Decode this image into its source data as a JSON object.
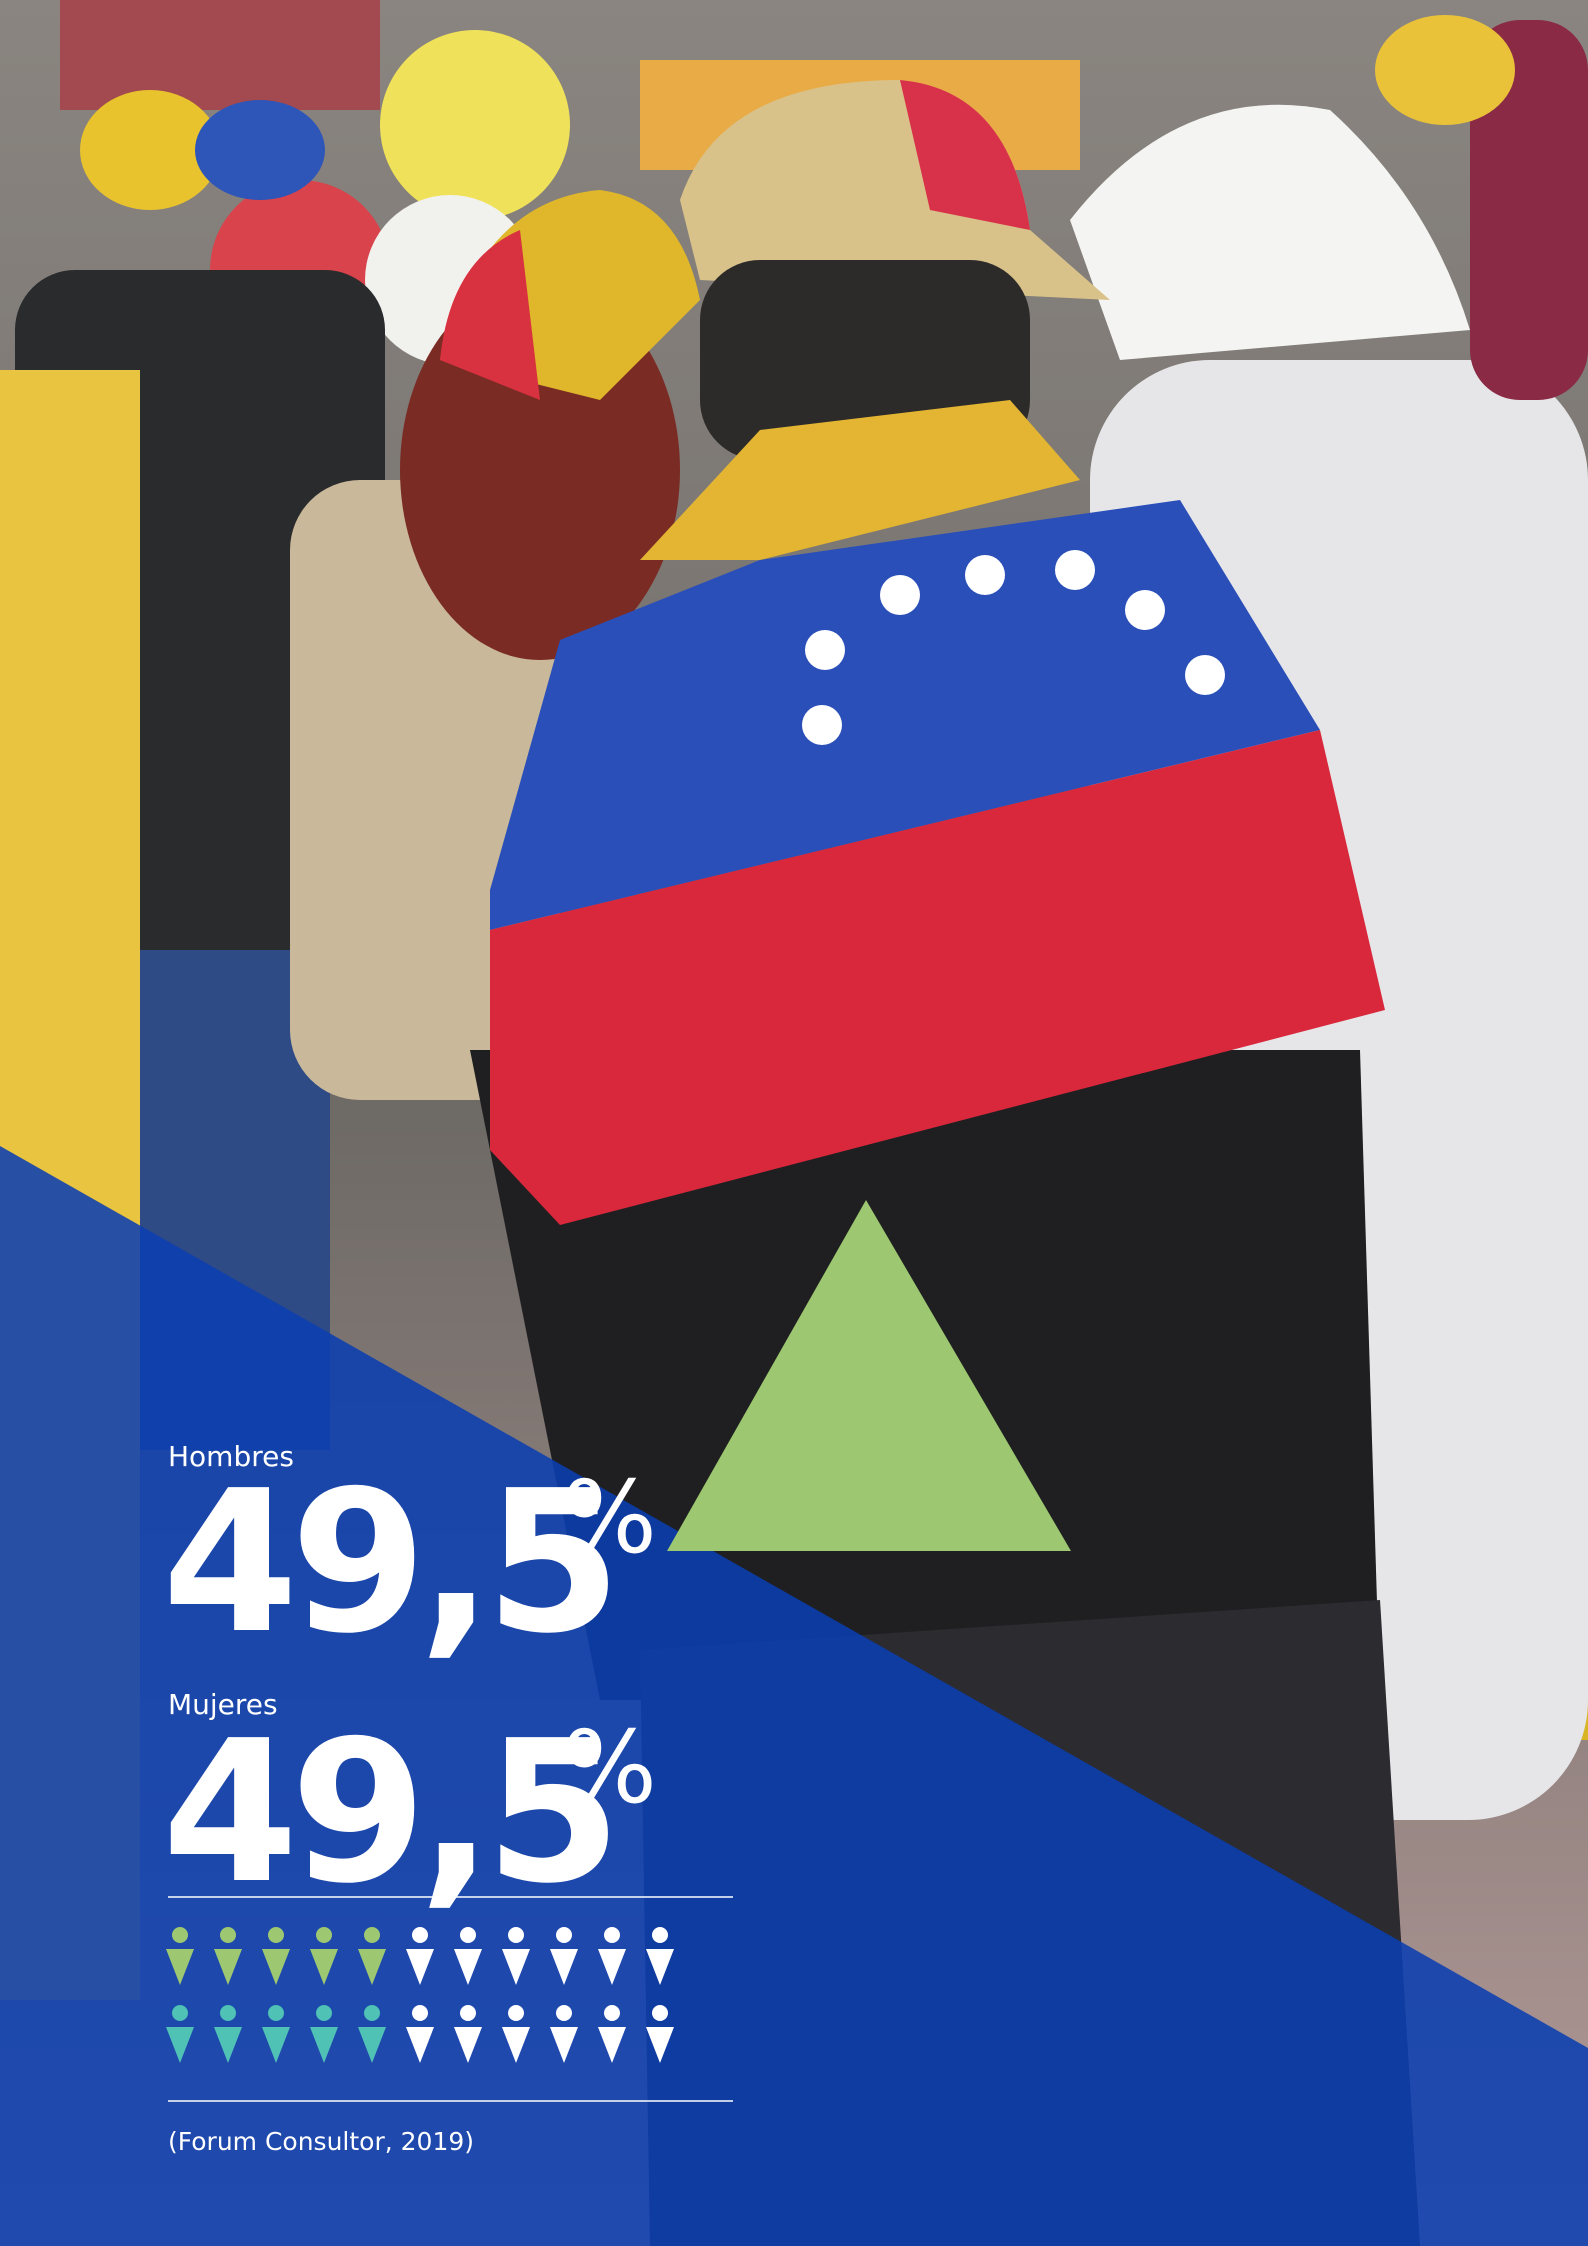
{
  "stats": [
    {
      "label": "Hombres",
      "value": "49,5",
      "unit": "%"
    },
    {
      "label": "Mujeres",
      "value": "49,5",
      "unit": "%"
    }
  ],
  "source": "(Forum Consultor, 2019)"
}
